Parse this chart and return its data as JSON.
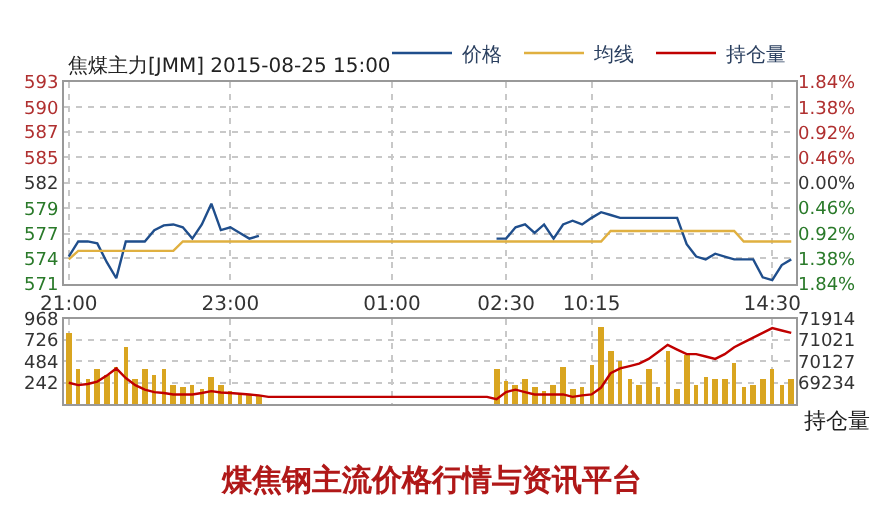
{
  "chart_data": [
    {
      "type": "line",
      "title": "焦煤主力[JMM] 2015-08-25 15:00",
      "legend": "top right",
      "grid": true,
      "marker": "none",
      "line_style": "solid",
      "categories": [
        "21:00",
        null,
        null,
        null,
        null,
        null,
        null,
        null,
        null,
        null,
        null,
        null,
        null,
        null,
        null,
        null,
        null,
        "23:00",
        null,
        null,
        null,
        null,
        null,
        null,
        null,
        null,
        null,
        null,
        null,
        null,
        null,
        null,
        null,
        null,
        "01:00",
        null,
        null,
        null,
        null,
        null,
        null,
        null,
        null,
        null,
        null,
        null,
        "02:30",
        null,
        null,
        null,
        null,
        null,
        null,
        null,
        null,
        "10:15",
        null,
        null,
        null,
        null,
        null,
        null,
        null,
        null,
        null,
        null,
        null,
        null,
        null,
        null,
        null,
        null,
        null,
        null,
        "14:30",
        null,
        null
      ],
      "ylim": [
        571.3,
        592.7
      ],
      "yticks": [
        {
          "value": 592.7,
          "label": "593"
        },
        {
          "value": 590.0,
          "label": "590"
        },
        {
          "value": 587.4,
          "label": "587"
        },
        {
          "value": 584.7,
          "label": "585"
        },
        {
          "value": 582.0,
          "label": "582"
        },
        {
          "value": 579.3,
          "label": "579"
        },
        {
          "value": 576.6,
          "label": "577"
        },
        {
          "value": 574.0,
          "label": "574"
        },
        {
          "value": 571.3,
          "label": "571"
        }
      ],
      "y2lim": [
        -1.84,
        1.84
      ],
      "y2ticks": [
        {
          "value": 1.84,
          "label": "1.84%"
        },
        {
          "value": 1.38,
          "label": "1.38%"
        },
        {
          "value": 0.92,
          "label": "0.92%"
        },
        {
          "value": 0.46,
          "label": "0.46%"
        },
        {
          "value": 0,
          "label": "0.00%"
        },
        {
          "value": -0.46,
          "label": "0.46%"
        },
        {
          "value": -0.92,
          "label": "0.92%"
        },
        {
          "value": -1.38,
          "label": "1.38%"
        },
        {
          "value": -1.84,
          "label": "1.84%"
        }
      ],
      "series": [
        {
          "name": "价格",
          "color": "#1f4e8c",
          "values": [
            574.2,
            575.8,
            575.8,
            575.6,
            573.6,
            571.9,
            575.8,
            575.8,
            575.8,
            577.0,
            577.5,
            577.6,
            577.3,
            576.1,
            577.6,
            579.8,
            577.0,
            577.3,
            576.7,
            576.1,
            576.4,
            null,
            null,
            null,
            null,
            null,
            null,
            null,
            null,
            null,
            null,
            null,
            null,
            null,
            null,
            null,
            null,
            null,
            null,
            null,
            null,
            null,
            null,
            null,
            null,
            576.1,
            576.1,
            577.3,
            577.6,
            576.7,
            577.6,
            576.1,
            577.6,
            578.0,
            577.6,
            578.3,
            578.9,
            578.6,
            578.3,
            578.3,
            578.3,
            578.3,
            578.3,
            578.3,
            578.3,
            575.5,
            574.2,
            573.9,
            574.5,
            574.2,
            573.9,
            573.9,
            573.9,
            572.0,
            571.7,
            573.3,
            573.9
          ]
        },
        {
          "name": "均线",
          "color": "#e0b040",
          "values": [
            573.9,
            574.8,
            574.8,
            574.8,
            574.8,
            574.8,
            574.8,
            574.8,
            574.8,
            574.8,
            574.8,
            574.8,
            575.8,
            575.8,
            575.8,
            575.8,
            575.8,
            575.8,
            575.8,
            575.8,
            575.8,
            575.8,
            575.8,
            575.8,
            575.8,
            575.8,
            575.8,
            575.8,
            575.8,
            575.8,
            575.8,
            575.8,
            575.8,
            575.8,
            575.8,
            575.8,
            575.8,
            575.8,
            575.8,
            575.8,
            575.8,
            575.8,
            575.8,
            575.8,
            575.8,
            575.8,
            575.8,
            575.8,
            575.8,
            575.8,
            575.8,
            575.8,
            575.8,
            575.8,
            575.8,
            575.8,
            575.8,
            576.9,
            576.9,
            576.9,
            576.9,
            576.9,
            576.9,
            576.9,
            576.9,
            576.9,
            576.9,
            576.9,
            576.9,
            576.9,
            576.9,
            575.8,
            575.8,
            575.8,
            575.8,
            575.8,
            575.8
          ]
        }
      ]
    },
    {
      "type": "bar",
      "grid": true,
      "tick_labels": "y",
      "y2label": "持仓量",
      "annotations": [
        "煤焦钢主流价格行情与资讯平台"
      ],
      "categories": [
        null,
        null,
        null,
        null,
        null,
        null,
        null,
        null,
        null,
        null,
        null,
        null,
        null,
        null,
        null,
        null,
        null,
        null,
        null,
        null,
        null,
        null,
        null,
        null,
        null,
        null,
        null,
        null,
        null,
        null,
        null,
        null,
        null,
        null,
        null,
        null,
        null,
        null,
        null,
        null,
        null,
        null,
        null,
        null,
        null,
        null,
        null,
        null,
        null,
        null,
        null,
        null,
        null,
        null,
        null,
        null,
        null,
        null,
        null,
        null,
        null,
        null,
        null,
        null,
        null,
        null,
        null,
        null,
        null,
        null,
        null,
        null,
        null,
        null,
        null,
        null,
        null
      ],
      "ylim": [
        0,
        968
      ],
      "yticks": [
        242,
        484,
        726,
        968
      ],
      "y2lim": [
        68340,
        71914
      ],
      "y2ticks": [
        69234,
        70127,
        71021,
        71914
      ],
      "series": [
        {
          "type": "bar",
          "color": "#d9a520",
          "values": [
            820,
            390,
            290,
            390,
            340,
            420,
            660,
            290,
            390,
            340,
            390,
            230,
            200,
            230,
            180,
            310,
            230,
            150,
            120,
            100,
            100,
            null,
            null,
            null,
            null,
            null,
            null,
            null,
            null,
            null,
            null,
            null,
            null,
            null,
            null,
            null,
            null,
            null,
            null,
            null,
            null,
            null,
            null,
            null,
            null,
            390,
            260,
            230,
            290,
            200,
            150,
            230,
            420,
            180,
            200,
            450,
            880,
            610,
            500,
            290,
            230,
            390,
            200,
            610,
            180,
            550,
            230,
            310,
            290,
            290,
            470,
            200,
            230,
            290,
            390,
            230,
            290
          ]
        },
        {
          "type": "line",
          "name": "持仓量",
          "color": "#c00000",
          "axis": "y2",
          "values": [
            69230,
            69130,
            69180,
            69280,
            69530,
            69830,
            69430,
            69130,
            68940,
            68840,
            68800,
            68740,
            68740,
            68740,
            68800,
            68880,
            68820,
            68800,
            68770,
            68740,
            68700,
            68640,
            68640,
            68640,
            68640,
            68640,
            68640,
            68640,
            68640,
            68640,
            68640,
            68640,
            68640,
            68640,
            68640,
            68640,
            68640,
            68640,
            68640,
            68640,
            68640,
            68640,
            68640,
            68640,
            68640,
            68540,
            68840,
            68940,
            68840,
            68740,
            68740,
            68740,
            68740,
            68640,
            68700,
            68740,
            69030,
            69630,
            69830,
            69930,
            70030,
            70230,
            70520,
            70820,
            70620,
            70430,
            70430,
            70330,
            70230,
            70430,
            70720,
            70920,
            71120,
            71320,
            71520,
            71420,
            71320
          ]
        }
      ]
    }
  ]
}
